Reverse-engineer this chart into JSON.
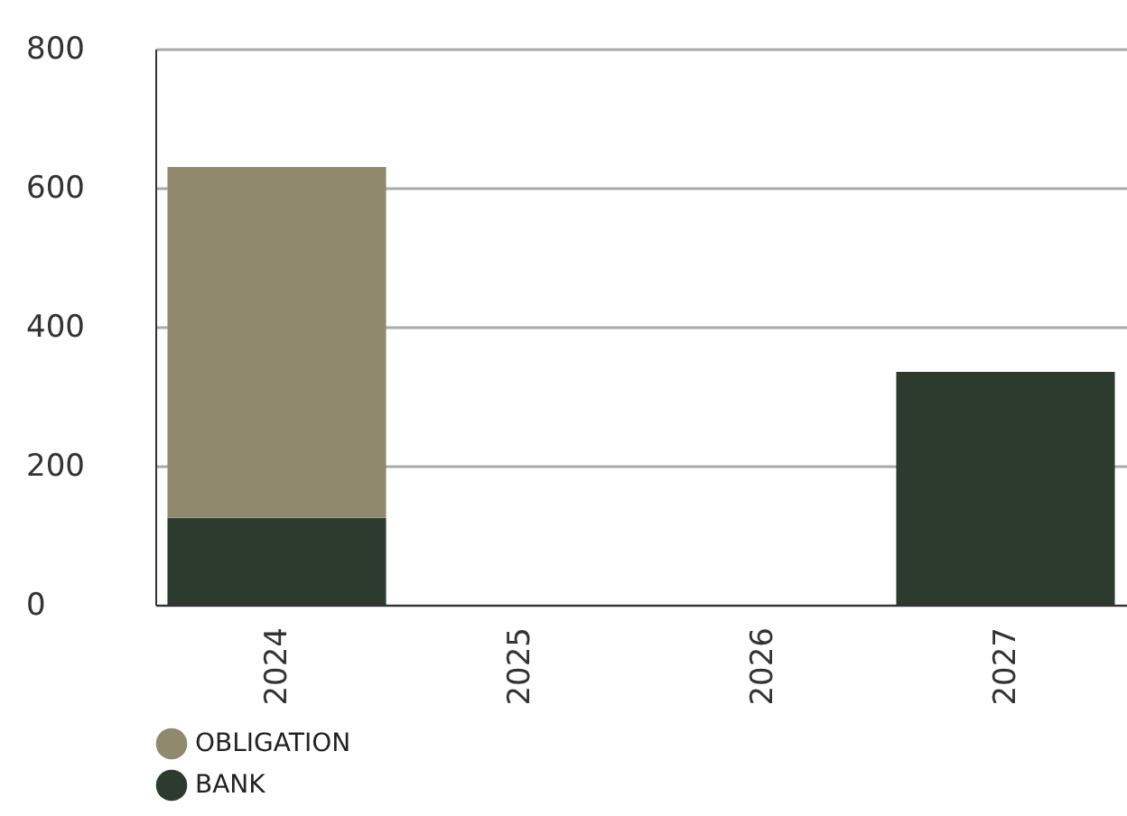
{
  "chart_data": {
    "type": "bar",
    "stacked": true,
    "categories": [
      "2024",
      "2025",
      "2026",
      "2027"
    ],
    "series": [
      {
        "name": "BANK",
        "color": "#2d3b2f",
        "values": [
          125,
          0,
          0,
          335
        ]
      },
      {
        "name": "OBLIGATION",
        "color": "#90896d",
        "values": [
          505,
          0,
          0,
          0
        ]
      }
    ],
    "ylim": [
      0,
      800
    ],
    "yticks": [
      0,
      200,
      400,
      600,
      800
    ],
    "grid": "y",
    "legend": "bottom left"
  }
}
